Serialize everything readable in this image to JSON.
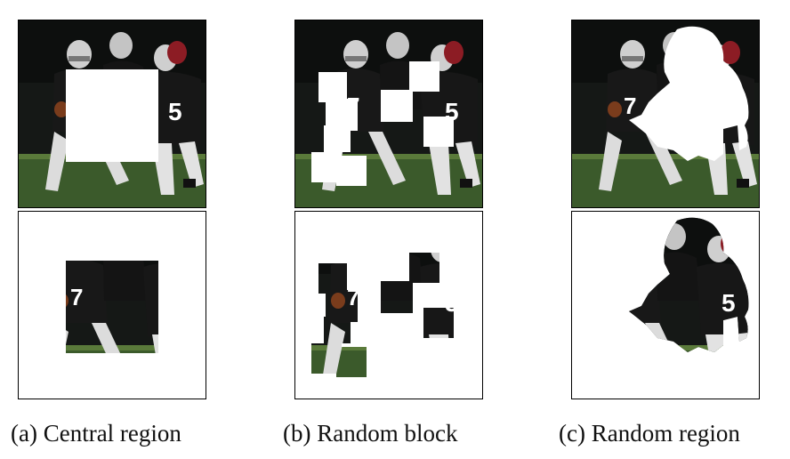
{
  "figure": {
    "panels": [
      {
        "id": "a",
        "caption": "(a) Central region",
        "masking": "central region"
      },
      {
        "id": "b",
        "caption": "(b) Random block",
        "masking": "random block"
      },
      {
        "id": "c",
        "caption": "(c) Random region",
        "masking": "random region"
      }
    ],
    "jersey_numbers": [
      "7",
      "5"
    ],
    "colors": {
      "frame": "#000000",
      "mask": "#ffffff",
      "field": "#3c5a2c",
      "jersey": "#161616",
      "helmet": "#c9c9c9"
    }
  }
}
